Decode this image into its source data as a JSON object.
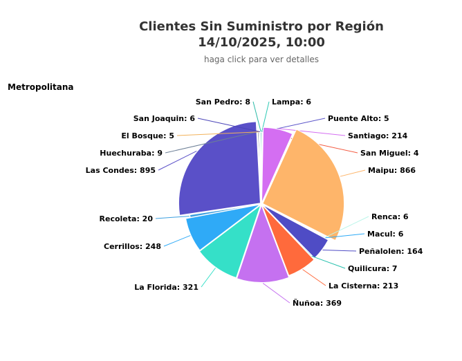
{
  "header": {
    "title_line1": "Clientes Sin Suministro por Región",
    "title_line2": "14/10/2025, 10:00",
    "subtitle": "haga click para ver detalles"
  },
  "region": "Metropolitana",
  "chart_data": {
    "type": "pie",
    "title": "Clientes Sin Suministro por Región",
    "subtitle": "haga click para ver detalles",
    "series": [
      {
        "name": "Metropolitana",
        "slices": [
          {
            "label": "Lampa",
            "value": 6,
            "color": "#2ec9b4"
          },
          {
            "label": "Puente Alto",
            "value": 5,
            "color": "#5b55c9"
          },
          {
            "label": "Santiago",
            "value": 214,
            "color": "#d46ef2"
          },
          {
            "label": "San Miguel",
            "value": 4,
            "color": "#f35a40"
          },
          {
            "label": "Maipu",
            "value": 866,
            "color": "#feb56a"
          },
          {
            "label": "Renca",
            "value": 6,
            "color": "#b9f5e9"
          },
          {
            "label": "Macul",
            "value": 6,
            "color": "#2aa9f6"
          },
          {
            "label": "Peñalolen",
            "value": 164,
            "color": "#4f4cc5"
          },
          {
            "label": "Quilicura",
            "value": 7,
            "color": "#26c0ad"
          },
          {
            "label": "La Cisterna",
            "value": 213,
            "color": "#ff6a3c"
          },
          {
            "label": "Ñuñoa",
            "value": 369,
            "color": "#c571f0"
          },
          {
            "label": "La Florida",
            "value": 321,
            "color": "#35e0c8"
          },
          {
            "label": "Cerrillos",
            "value": 248,
            "color": "#2faaf7"
          },
          {
            "label": "Recoleta",
            "value": 20,
            "color": "#3b9fe0"
          },
          {
            "label": "Las Condes",
            "value": 895,
            "color": "#5a50c8"
          },
          {
            "label": "Huechuraba",
            "value": 9,
            "color": "#6c7f96"
          },
          {
            "label": "El Bosque",
            "value": 5,
            "color": "#f2b25a"
          },
          {
            "label": "San Joaquin",
            "value": 6,
            "color": "#4a44b8"
          },
          {
            "label": "San Pedro",
            "value": 8,
            "color": "#29b9a6"
          }
        ]
      }
    ]
  }
}
